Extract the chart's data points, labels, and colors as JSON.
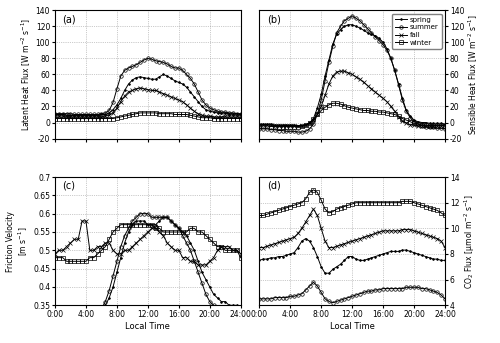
{
  "seasons": [
    "spring",
    "summer",
    "fall",
    "winter"
  ],
  "markers": [
    ".",
    "o",
    "x",
    "s"
  ],
  "hours": [
    0,
    0.5,
    1,
    1.5,
    2,
    2.5,
    3,
    3.5,
    4,
    4.5,
    5,
    5.5,
    6,
    6.5,
    7,
    7.5,
    8,
    8.5,
    9,
    9.5,
    10,
    10.5,
    11,
    11.5,
    12,
    12.5,
    13,
    13.5,
    14,
    14.5,
    15,
    15.5,
    16,
    16.5,
    17,
    17.5,
    18,
    18.5,
    19,
    19.5,
    20,
    20.5,
    21,
    21.5,
    22,
    22.5,
    23,
    23.5,
    24
  ],
  "latent_spring": [
    10,
    10,
    10,
    9,
    9,
    9,
    9,
    9,
    9,
    9,
    9,
    9,
    10,
    10,
    12,
    16,
    22,
    30,
    40,
    48,
    53,
    56,
    57,
    56,
    55,
    54,
    54,
    57,
    60,
    58,
    55,
    52,
    50,
    48,
    44,
    38,
    32,
    26,
    20,
    16,
    14,
    13,
    12,
    12,
    12,
    11,
    11,
    11,
    10
  ],
  "latent_summer": [
    11,
    11,
    11,
    11,
    11,
    10,
    10,
    10,
    10,
    10,
    10,
    10,
    11,
    12,
    15,
    25,
    42,
    58,
    65,
    68,
    70,
    72,
    75,
    78,
    80,
    79,
    77,
    76,
    75,
    73,
    70,
    68,
    68,
    65,
    60,
    55,
    48,
    38,
    28,
    22,
    18,
    16,
    14,
    13,
    13,
    12,
    12,
    11,
    11
  ],
  "latent_fall": [
    8,
    8,
    8,
    7,
    7,
    7,
    7,
    7,
    7,
    7,
    7,
    7,
    7,
    8,
    9,
    12,
    18,
    26,
    33,
    38,
    40,
    42,
    43,
    42,
    41,
    40,
    40,
    38,
    36,
    34,
    32,
    30,
    28,
    26,
    22,
    18,
    14,
    11,
    9,
    8,
    8,
    7,
    7,
    7,
    8,
    8,
    8,
    8,
    8
  ],
  "latent_winter": [
    5,
    5,
    5,
    5,
    5,
    5,
    5,
    5,
    5,
    5,
    5,
    5,
    5,
    5,
    5,
    5,
    6,
    7,
    8,
    9,
    10,
    11,
    12,
    12,
    12,
    12,
    12,
    11,
    11,
    11,
    11,
    10,
    10,
    10,
    10,
    9,
    8,
    7,
    6,
    6,
    6,
    5,
    5,
    5,
    5,
    5,
    5,
    5,
    5
  ],
  "sensible_spring": [
    -2,
    -2,
    -2,
    -2,
    -3,
    -3,
    -3,
    -3,
    -3,
    -3,
    -4,
    -4,
    -3,
    -1,
    5,
    18,
    35,
    58,
    78,
    98,
    110,
    116,
    120,
    122,
    122,
    120,
    118,
    115,
    112,
    110,
    108,
    105,
    100,
    92,
    80,
    65,
    48,
    30,
    15,
    8,
    3,
    1,
    0,
    0,
    -1,
    -1,
    -1,
    -1,
    -2
  ],
  "sensible_summer": [
    -8,
    -8,
    -8,
    -9,
    -9,
    -10,
    -10,
    -11,
    -11,
    -11,
    -12,
    -12,
    -11,
    -8,
    -2,
    10,
    28,
    52,
    75,
    95,
    112,
    120,
    127,
    130,
    133,
    130,
    127,
    122,
    117,
    112,
    107,
    102,
    97,
    90,
    80,
    65,
    47,
    28,
    14,
    6,
    1,
    -2,
    -4,
    -5,
    -6,
    -6,
    -7,
    -7,
    -8
  ],
  "sensible_fall": [
    -3,
    -3,
    -3,
    -3,
    -4,
    -4,
    -4,
    -4,
    -4,
    -4,
    -4,
    -4,
    -3,
    -1,
    3,
    10,
    20,
    34,
    48,
    58,
    63,
    64,
    64,
    62,
    60,
    57,
    54,
    50,
    46,
    42,
    38,
    34,
    30,
    26,
    20,
    14,
    7,
    2,
    -1,
    -3,
    -3,
    -4,
    -4,
    -4,
    -4,
    -4,
    -4,
    -4,
    -3
  ],
  "sensible_winter": [
    -4,
    -4,
    -4,
    -5,
    -5,
    -5,
    -5,
    -5,
    -5,
    -5,
    -5,
    -4,
    -3,
    0,
    4,
    10,
    15,
    19,
    22,
    24,
    24,
    23,
    21,
    19,
    18,
    17,
    16,
    15,
    15,
    14,
    14,
    13,
    13,
    12,
    11,
    10,
    8,
    5,
    3,
    1,
    -1,
    -2,
    -3,
    -3,
    -4,
    -4,
    -4,
    -4,
    -4
  ],
  "friction_spring": [
    0.34,
    0.34,
    0.33,
    0.33,
    0.33,
    0.33,
    0.32,
    0.32,
    0.32,
    0.33,
    0.33,
    0.33,
    0.34,
    0.35,
    0.37,
    0.4,
    0.44,
    0.48,
    0.52,
    0.55,
    0.57,
    0.58,
    0.58,
    0.58,
    0.57,
    0.57,
    0.57,
    0.58,
    0.59,
    0.59,
    0.58,
    0.57,
    0.56,
    0.55,
    0.54,
    0.52,
    0.5,
    0.47,
    0.44,
    0.42,
    0.4,
    0.38,
    0.37,
    0.36,
    0.36,
    0.35,
    0.35,
    0.35,
    0.34
  ],
  "friction_summer": [
    0.33,
    0.33,
    0.32,
    0.32,
    0.32,
    0.32,
    0.31,
    0.31,
    0.31,
    0.32,
    0.32,
    0.33,
    0.34,
    0.36,
    0.39,
    0.43,
    0.47,
    0.51,
    0.54,
    0.56,
    0.58,
    0.59,
    0.6,
    0.6,
    0.6,
    0.59,
    0.59,
    0.59,
    0.59,
    0.59,
    0.58,
    0.57,
    0.56,
    0.54,
    0.52,
    0.5,
    0.47,
    0.44,
    0.41,
    0.38,
    0.36,
    0.35,
    0.34,
    0.34,
    0.33,
    0.33,
    0.33,
    0.33,
    0.33
  ],
  "friction_fall": [
    0.49,
    0.5,
    0.5,
    0.51,
    0.52,
    0.53,
    0.53,
    0.58,
    0.58,
    0.5,
    0.5,
    0.51,
    0.51,
    0.52,
    0.52,
    0.5,
    0.49,
    0.49,
    0.5,
    0.5,
    0.51,
    0.52,
    0.53,
    0.54,
    0.55,
    0.56,
    0.56,
    0.55,
    0.54,
    0.52,
    0.51,
    0.5,
    0.5,
    0.48,
    0.48,
    0.47,
    0.47,
    0.46,
    0.46,
    0.46,
    0.47,
    0.48,
    0.5,
    0.51,
    0.51,
    0.51,
    0.5,
    0.5,
    0.49
  ],
  "friction_winter": [
    0.48,
    0.48,
    0.48,
    0.47,
    0.47,
    0.47,
    0.47,
    0.47,
    0.47,
    0.48,
    0.48,
    0.49,
    0.5,
    0.51,
    0.53,
    0.55,
    0.56,
    0.57,
    0.57,
    0.57,
    0.57,
    0.57,
    0.57,
    0.57,
    0.57,
    0.57,
    0.56,
    0.56,
    0.55,
    0.55,
    0.55,
    0.55,
    0.55,
    0.55,
    0.55,
    0.56,
    0.56,
    0.55,
    0.55,
    0.54,
    0.53,
    0.52,
    0.51,
    0.51,
    0.5,
    0.5,
    0.5,
    0.5,
    0.48
  ],
  "co2_spring": [
    7.5,
    7.6,
    7.6,
    7.7,
    7.7,
    7.8,
    7.8,
    7.9,
    8.0,
    8.1,
    8.5,
    9.0,
    9.2,
    9.0,
    8.5,
    7.8,
    7.0,
    6.5,
    6.5,
    6.8,
    7.0,
    7.2,
    7.5,
    7.8,
    7.8,
    7.6,
    7.5,
    7.5,
    7.6,
    7.7,
    7.8,
    7.9,
    8.0,
    8.1,
    8.2,
    8.2,
    8.2,
    8.3,
    8.3,
    8.2,
    8.1,
    8.0,
    7.9,
    7.8,
    7.7,
    7.6,
    7.6,
    7.5,
    7.5
  ],
  "co2_summer": [
    4.5,
    4.5,
    4.5,
    4.5,
    4.6,
    4.6,
    4.6,
    4.6,
    4.7,
    4.7,
    4.8,
    4.9,
    5.2,
    5.5,
    5.8,
    5.5,
    5.0,
    4.5,
    4.3,
    4.2,
    4.3,
    4.4,
    4.5,
    4.6,
    4.7,
    4.8,
    4.9,
    5.0,
    5.1,
    5.1,
    5.2,
    5.2,
    5.3,
    5.3,
    5.3,
    5.3,
    5.3,
    5.3,
    5.4,
    5.4,
    5.4,
    5.4,
    5.3,
    5.3,
    5.2,
    5.1,
    5.0,
    4.8,
    4.5
  ],
  "co2_fall": [
    8.5,
    8.5,
    8.6,
    8.7,
    8.8,
    8.9,
    9.0,
    9.1,
    9.2,
    9.3,
    9.6,
    10.0,
    10.5,
    11.0,
    11.5,
    11.0,
    10.0,
    9.0,
    8.5,
    8.5,
    8.6,
    8.7,
    8.8,
    8.9,
    9.0,
    9.1,
    9.2,
    9.3,
    9.4,
    9.5,
    9.6,
    9.7,
    9.8,
    9.8,
    9.8,
    9.8,
    9.8,
    9.9,
    9.9,
    9.9,
    9.8,
    9.7,
    9.6,
    9.5,
    9.4,
    9.3,
    9.2,
    9.0,
    8.5
  ],
  "co2_winter": [
    11.0,
    11.0,
    11.1,
    11.2,
    11.3,
    11.4,
    11.5,
    11.6,
    11.7,
    11.8,
    11.9,
    12.0,
    12.3,
    12.8,
    13.0,
    12.8,
    12.2,
    11.5,
    11.2,
    11.3,
    11.5,
    11.6,
    11.7,
    11.8,
    11.9,
    12.0,
    12.0,
    12.0,
    12.0,
    12.0,
    12.0,
    12.0,
    12.0,
    12.0,
    12.0,
    12.0,
    12.0,
    12.1,
    12.1,
    12.1,
    12.0,
    11.9,
    11.8,
    11.7,
    11.6,
    11.5,
    11.4,
    11.2,
    11.0
  ],
  "xlabel": "Local Time",
  "ylabel_a": "Latent Heat Flux [W m$^{-2}$ s$^{-1}$]",
  "ylabel_b": "Sensible Heat Flux [W m$^{-2}$ s$^{-1}$]",
  "ylabel_c": "Friction Velocity\n[m s$^{-1}$]",
  "ylabel_d": "CO$_2$ Flux [μmol m$^{-2}$ s$^{-1}$]",
  "ylim_a": [
    -20,
    140
  ],
  "ylim_b": [
    -20,
    140
  ],
  "ylim_c": [
    0.35,
    0.7
  ],
  "ylim_d": [
    4,
    14
  ],
  "yticks_a": [
    -20,
    0,
    20,
    40,
    60,
    80,
    100,
    120,
    140
  ],
  "yticks_b": [
    -20,
    0,
    20,
    40,
    60,
    80,
    100,
    120,
    140
  ],
  "yticks_c": [
    0.35,
    0.4,
    0.45,
    0.5,
    0.55,
    0.6,
    0.65,
    0.7
  ],
  "yticks_d": [
    4,
    6,
    8,
    10,
    12,
    14
  ],
  "xtick_labels": [
    "0:00",
    "4:00",
    "8:00",
    "12:00",
    "16:00",
    "20:00",
    "24:00"
  ],
  "xtick_positions": [
    0,
    4,
    8,
    12,
    16,
    20,
    24
  ],
  "markersize": 2.5,
  "linewidth": 0.7
}
